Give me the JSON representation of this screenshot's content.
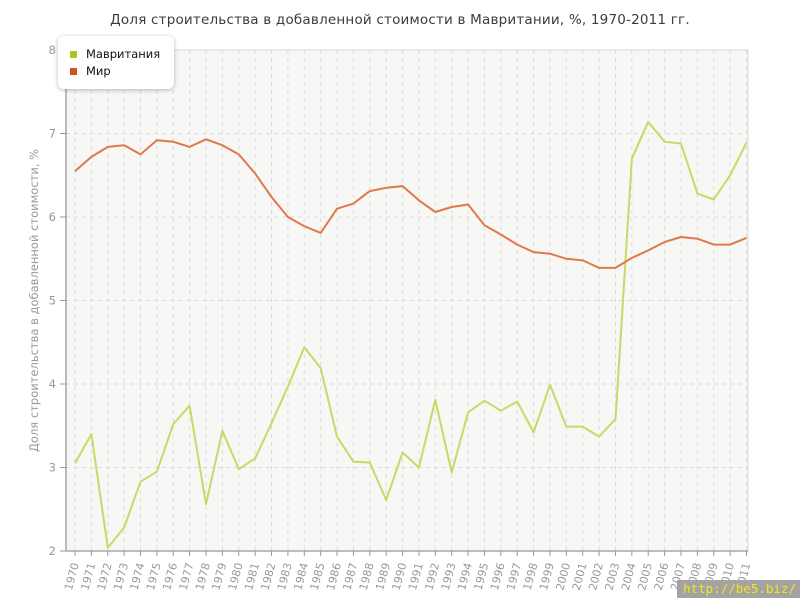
{
  "title": "Доля строительства в добавленной стоимости в Мавритании, %, 1970-2011 гг.",
  "watermark": "http://be5.biz/",
  "chart_data": {
    "type": "line",
    "title": "Доля строительства в добавленной стоимости в Мавритании, %, 1970-2011 гг.",
    "xlabel": "",
    "ylabel": "Доля строительства в добавленной стоимости, %",
    "ylim": [
      2,
      8
    ],
    "yticks": [
      2,
      3,
      4,
      5,
      6,
      7,
      8
    ],
    "grid": true,
    "grid_style": "dashed",
    "legend_position": "top-left",
    "categories": [
      1970,
      1971,
      1972,
      1973,
      1974,
      1975,
      1976,
      1977,
      1978,
      1979,
      1980,
      1981,
      1982,
      1983,
      1984,
      1985,
      1986,
      1987,
      1988,
      1989,
      1990,
      1991,
      1992,
      1993,
      1994,
      1995,
      1996,
      1997,
      1998,
      1999,
      2000,
      2001,
      2002,
      2003,
      2004,
      2005,
      2006,
      2007,
      2008,
      2009,
      2010,
      2011
    ],
    "series": [
      {
        "name": "Мавритания",
        "color": "#a9c721",
        "line_color": "#c6da67",
        "values": [
          3.05,
          3.4,
          2.04,
          2.28,
          2.83,
          2.95,
          3.52,
          3.74,
          2.56,
          3.44,
          2.98,
          3.11,
          3.53,
          3.97,
          4.44,
          4.19,
          3.37,
          3.07,
          3.06,
          2.61,
          3.18,
          3.0,
          3.81,
          2.94,
          3.66,
          3.8,
          3.68,
          3.79,
          3.42,
          3.99,
          3.49,
          3.49,
          3.37,
          3.58,
          6.7,
          7.14,
          6.9,
          6.88,
          6.28,
          6.21,
          6.5,
          6.89
        ]
      },
      {
        "name": "Мир",
        "color": "#d6511d",
        "line_color": "#e2784a",
        "values": [
          6.55,
          6.72,
          6.84,
          6.86,
          6.75,
          6.92,
          6.9,
          6.84,
          6.93,
          6.86,
          6.75,
          6.52,
          6.24,
          6.0,
          5.89,
          5.81,
          6.1,
          6.16,
          6.31,
          6.35,
          6.37,
          6.2,
          6.06,
          6.12,
          6.15,
          5.9,
          5.79,
          5.67,
          5.58,
          5.56,
          5.5,
          5.48,
          5.39,
          5.39,
          5.51,
          5.6,
          5.7,
          5.76,
          5.74,
          5.67,
          5.67,
          5.75
        ]
      }
    ]
  }
}
